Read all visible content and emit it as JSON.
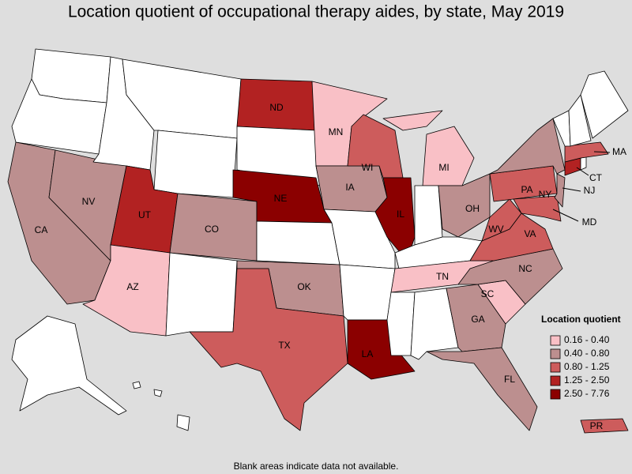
{
  "title": "Location quotient of occupational therapy aides, by state, May 2019",
  "states": [
    {
      "label": "ND",
      "color": "#b22222"
    },
    {
      "label": "MN",
      "color": "#f9c0c6"
    },
    {
      "label": "WI",
      "color": "#cd5c5c"
    },
    {
      "label": "MI",
      "color": "#f9c0c6"
    },
    {
      "label": "NY",
      "color": "#bc8f8f"
    },
    {
      "label": "MA",
      "color": "#cd5c5c"
    },
    {
      "label": "CT",
      "color": "#b22222"
    },
    {
      "label": "NJ",
      "color": "#bc8f8f"
    },
    {
      "label": "PA",
      "color": "#cd5c5c"
    },
    {
      "label": "OH",
      "color": "#bc8f8f"
    },
    {
      "label": "IA",
      "color": "#bc8f8f"
    },
    {
      "label": "NE",
      "color": "#8b0000"
    },
    {
      "label": "IL",
      "color": "#8b0000"
    },
    {
      "label": "NV",
      "color": "#bc8f8f"
    },
    {
      "label": "UT",
      "color": "#b22222"
    },
    {
      "label": "CO",
      "color": "#bc8f8f"
    },
    {
      "label": "CA",
      "color": "#bc8f8f"
    },
    {
      "label": "AZ",
      "color": "#f9c0c6"
    },
    {
      "label": "WV",
      "color": "#cd5c5c"
    },
    {
      "label": "VA",
      "color": "#cd5c5c"
    },
    {
      "label": "MD",
      "color": "#cd5c5c"
    },
    {
      "label": "TN",
      "color": "#f9c0c6"
    },
    {
      "label": "NC",
      "color": "#bc8f8f"
    },
    {
      "label": "OK",
      "color": "#bc8f8f"
    },
    {
      "label": "SC",
      "color": "#f9c0c6"
    },
    {
      "label": "GA",
      "color": "#bc8f8f"
    },
    {
      "label": "TX",
      "color": "#cd5c5c"
    },
    {
      "label": "LA",
      "color": "#8b0000"
    },
    {
      "label": "FL",
      "color": "#bc8f8f"
    },
    {
      "label": "PR",
      "color": "#cd5c5c"
    }
  ],
  "legend": {
    "title": "Location quotient",
    "items": [
      {
        "label": "0.16 - 0.40",
        "color": "#f9c0c6"
      },
      {
        "label": "0.40 - 0.80",
        "color": "#bc8f8f"
      },
      {
        "label": "0.80 - 1.25",
        "color": "#cd5c5c"
      },
      {
        "label": "1.25 - 2.50",
        "color": "#b22222"
      },
      {
        "label": "2.50 - 7.76",
        "color": "#8b0000"
      }
    ]
  },
  "footnote": "Blank areas indicate data not available."
}
